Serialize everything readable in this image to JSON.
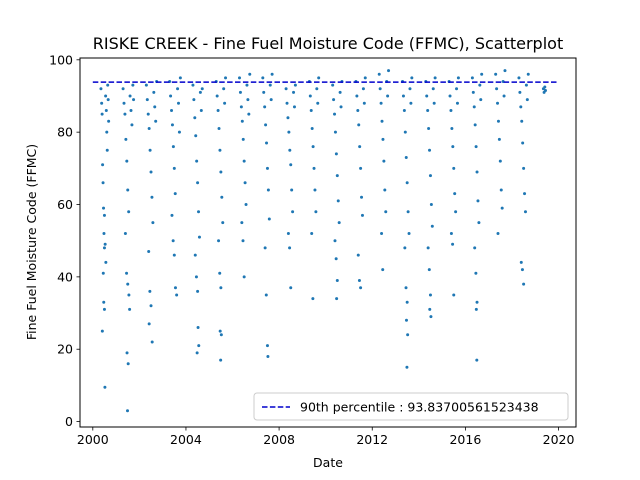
{
  "chart_data": {
    "type": "scatter",
    "title": "RISKE CREEK - Fine Fuel Moisture Code (FFMC), Scatterplot",
    "xlabel": "Date",
    "ylabel": "Fine Fuel Moisture Code (FFMC)",
    "xlim": [
      1999.45,
      2020.75
    ],
    "ylim": [
      -1.5,
      100.5
    ],
    "x_ticks": [
      2000,
      2004,
      2008,
      2012,
      2016,
      2020
    ],
    "x_tick_labels": [
      "2000",
      "2004",
      "2008",
      "2012",
      "2016",
      "2020"
    ],
    "y_ticks": [
      0,
      20,
      40,
      60,
      80,
      100
    ],
    "y_tick_labels": [
      "0",
      "20",
      "40",
      "60",
      "80",
      "100"
    ],
    "grid": false,
    "legend_position": "lower right",
    "series": [
      {
        "type": "scatter",
        "color": "#1f77b4",
        "points": [
          [
            2000.35,
            92
          ],
          [
            2000.38,
            88
          ],
          [
            2000.4,
            85
          ],
          [
            2000.42,
            71
          ],
          [
            2000.44,
            66
          ],
          [
            2000.46,
            59
          ],
          [
            2000.48,
            52
          ],
          [
            2000.5,
            48
          ],
          [
            2000.45,
            41
          ],
          [
            2000.47,
            33
          ],
          [
            2000.5,
            31
          ],
          [
            2000.41,
            25
          ],
          [
            2000.52,
            9.5
          ],
          [
            2000.55,
            90
          ],
          [
            2000.58,
            86
          ],
          [
            2000.6,
            80
          ],
          [
            2000.62,
            75
          ],
          [
            2000.64,
            93
          ],
          [
            2000.66,
            89
          ],
          [
            2000.68,
            83
          ],
          [
            2000.5,
            57
          ],
          [
            2000.53,
            49
          ],
          [
            2000.56,
            44
          ],
          [
            2001.3,
            92
          ],
          [
            2001.34,
            88
          ],
          [
            2001.38,
            85
          ],
          [
            2001.42,
            78
          ],
          [
            2001.46,
            72
          ],
          [
            2001.5,
            64
          ],
          [
            2001.54,
            58
          ],
          [
            2001.4,
            52
          ],
          [
            2001.45,
            41
          ],
          [
            2001.5,
            38
          ],
          [
            2001.55,
            35
          ],
          [
            2001.58,
            31
          ],
          [
            2001.47,
            19
          ],
          [
            2001.52,
            16
          ],
          [
            2001.49,
            3
          ],
          [
            2001.6,
            90
          ],
          [
            2001.64,
            86
          ],
          [
            2001.68,
            82
          ],
          [
            2001.72,
            93
          ],
          [
            2001.75,
            89
          ],
          [
            2002.3,
            93
          ],
          [
            2002.34,
            89
          ],
          [
            2002.38,
            85
          ],
          [
            2002.42,
            81
          ],
          [
            2002.46,
            75
          ],
          [
            2002.5,
            69
          ],
          [
            2002.54,
            62
          ],
          [
            2002.58,
            55
          ],
          [
            2002.4,
            47
          ],
          [
            2002.45,
            36
          ],
          [
            2002.5,
            32
          ],
          [
            2002.42,
            27
          ],
          [
            2002.55,
            22
          ],
          [
            2002.62,
            91
          ],
          [
            2002.66,
            87
          ],
          [
            2002.7,
            83
          ],
          [
            2002.74,
            94
          ],
          [
            2003.3,
            94
          ],
          [
            2003.34,
            90
          ],
          [
            2003.38,
            86
          ],
          [
            2003.42,
            82
          ],
          [
            2003.46,
            76
          ],
          [
            2003.5,
            70
          ],
          [
            2003.54,
            63
          ],
          [
            2003.4,
            57
          ],
          [
            2003.45,
            50
          ],
          [
            2003.5,
            46
          ],
          [
            2003.55,
            37
          ],
          [
            2003.6,
            35
          ],
          [
            2003.64,
            92
          ],
          [
            2003.68,
            88
          ],
          [
            2003.72,
            80
          ],
          [
            2003.76,
            95
          ],
          [
            2004.3,
            93
          ],
          [
            2004.34,
            89
          ],
          [
            2004.38,
            84
          ],
          [
            2004.42,
            79
          ],
          [
            2004.46,
            72
          ],
          [
            2004.5,
            66
          ],
          [
            2004.54,
            58
          ],
          [
            2004.58,
            51
          ],
          [
            2004.4,
            46
          ],
          [
            2004.45,
            40
          ],
          [
            2004.5,
            36
          ],
          [
            2004.52,
            26
          ],
          [
            2004.55,
            21
          ],
          [
            2004.48,
            19
          ],
          [
            2004.62,
            91
          ],
          [
            2004.66,
            86
          ],
          [
            2004.7,
            92
          ],
          [
            2005.3,
            94
          ],
          [
            2005.34,
            90
          ],
          [
            2005.38,
            86
          ],
          [
            2005.42,
            81
          ],
          [
            2005.46,
            75
          ],
          [
            2005.5,
            69
          ],
          [
            2005.54,
            62
          ],
          [
            2005.58,
            55
          ],
          [
            2005.4,
            50
          ],
          [
            2005.45,
            41
          ],
          [
            2005.5,
            37
          ],
          [
            2005.47,
            25
          ],
          [
            2005.52,
            24
          ],
          [
            2005.49,
            17
          ],
          [
            2005.62,
            92
          ],
          [
            2005.66,
            88
          ],
          [
            2005.7,
            95
          ],
          [
            2006.3,
            95
          ],
          [
            2006.34,
            91
          ],
          [
            2006.38,
            87
          ],
          [
            2006.42,
            83
          ],
          [
            2006.46,
            78
          ],
          [
            2006.5,
            72
          ],
          [
            2006.54,
            66
          ],
          [
            2006.58,
            60
          ],
          [
            2006.4,
            55
          ],
          [
            2006.45,
            50
          ],
          [
            2006.5,
            40
          ],
          [
            2006.62,
            93
          ],
          [
            2006.66,
            89
          ],
          [
            2006.7,
            85
          ],
          [
            2006.74,
            96
          ],
          [
            2007.3,
            95
          ],
          [
            2007.34,
            91
          ],
          [
            2007.38,
            87
          ],
          [
            2007.42,
            82
          ],
          [
            2007.46,
            77
          ],
          [
            2007.5,
            70
          ],
          [
            2007.54,
            64
          ],
          [
            2007.58,
            56
          ],
          [
            2007.4,
            48
          ],
          [
            2007.45,
            35
          ],
          [
            2007.5,
            21
          ],
          [
            2007.52,
            18
          ],
          [
            2007.62,
            93
          ],
          [
            2007.66,
            89
          ],
          [
            2007.7,
            96
          ],
          [
            2008.3,
            92
          ],
          [
            2008.34,
            88
          ],
          [
            2008.38,
            84
          ],
          [
            2008.42,
            80
          ],
          [
            2008.46,
            75
          ],
          [
            2008.5,
            71
          ],
          [
            2008.54,
            64
          ],
          [
            2008.58,
            58
          ],
          [
            2008.4,
            52
          ],
          [
            2008.45,
            48
          ],
          [
            2008.5,
            37
          ],
          [
            2008.62,
            91
          ],
          [
            2008.66,
            87
          ],
          [
            2008.7,
            93
          ],
          [
            2009.3,
            94
          ],
          [
            2009.34,
            90
          ],
          [
            2009.38,
            86
          ],
          [
            2009.42,
            81
          ],
          [
            2009.46,
            76
          ],
          [
            2009.5,
            70
          ],
          [
            2009.54,
            64
          ],
          [
            2009.58,
            58
          ],
          [
            2009.4,
            52
          ],
          [
            2009.45,
            34
          ],
          [
            2009.62,
            92
          ],
          [
            2009.66,
            88
          ],
          [
            2009.7,
            95
          ],
          [
            2010.3,
            93
          ],
          [
            2010.34,
            89
          ],
          [
            2010.38,
            85
          ],
          [
            2010.42,
            80
          ],
          [
            2010.46,
            74
          ],
          [
            2010.5,
            68
          ],
          [
            2010.54,
            61
          ],
          [
            2010.58,
            55
          ],
          [
            2010.4,
            50
          ],
          [
            2010.45,
            45
          ],
          [
            2010.5,
            39
          ],
          [
            2010.47,
            34
          ],
          [
            2010.62,
            91
          ],
          [
            2010.66,
            87
          ],
          [
            2010.7,
            94
          ],
          [
            2011.3,
            94
          ],
          [
            2011.34,
            90
          ],
          [
            2011.38,
            86
          ],
          [
            2011.42,
            82
          ],
          [
            2011.46,
            76
          ],
          [
            2011.5,
            70
          ],
          [
            2011.54,
            62
          ],
          [
            2011.58,
            57
          ],
          [
            2011.4,
            46
          ],
          [
            2011.45,
            39
          ],
          [
            2011.5,
            37
          ],
          [
            2011.62,
            92
          ],
          [
            2011.66,
            88
          ],
          [
            2011.7,
            95
          ],
          [
            2012.3,
            96
          ],
          [
            2012.34,
            92
          ],
          [
            2012.38,
            88
          ],
          [
            2012.42,
            83
          ],
          [
            2012.46,
            78
          ],
          [
            2012.5,
            72
          ],
          [
            2012.54,
            64
          ],
          [
            2012.58,
            58
          ],
          [
            2012.4,
            52
          ],
          [
            2012.45,
            42
          ],
          [
            2012.62,
            94
          ],
          [
            2012.66,
            90
          ],
          [
            2012.7,
            97
          ],
          [
            2013.3,
            94
          ],
          [
            2013.34,
            90
          ],
          [
            2013.38,
            86
          ],
          [
            2013.42,
            80
          ],
          [
            2013.46,
            73
          ],
          [
            2013.5,
            66
          ],
          [
            2013.54,
            58
          ],
          [
            2013.58,
            52
          ],
          [
            2013.4,
            48
          ],
          [
            2013.45,
            37
          ],
          [
            2013.5,
            33
          ],
          [
            2013.47,
            28
          ],
          [
            2013.52,
            24
          ],
          [
            2013.49,
            15
          ],
          [
            2013.62,
            92
          ],
          [
            2013.66,
            88
          ],
          [
            2013.7,
            95
          ],
          [
            2014.3,
            94
          ],
          [
            2014.34,
            90
          ],
          [
            2014.38,
            86
          ],
          [
            2014.42,
            81
          ],
          [
            2014.46,
            75
          ],
          [
            2014.5,
            68
          ],
          [
            2014.54,
            60
          ],
          [
            2014.58,
            54
          ],
          [
            2014.4,
            48
          ],
          [
            2014.45,
            42
          ],
          [
            2014.5,
            35
          ],
          [
            2014.47,
            31
          ],
          [
            2014.52,
            29
          ],
          [
            2014.62,
            92
          ],
          [
            2014.66,
            88
          ],
          [
            2014.7,
            95
          ],
          [
            2015.3,
            94
          ],
          [
            2015.34,
            90
          ],
          [
            2015.38,
            86
          ],
          [
            2015.42,
            81
          ],
          [
            2015.46,
            76
          ],
          [
            2015.5,
            70
          ],
          [
            2015.54,
            63
          ],
          [
            2015.58,
            58
          ],
          [
            2015.4,
            52
          ],
          [
            2015.45,
            49
          ],
          [
            2015.5,
            35
          ],
          [
            2015.62,
            92
          ],
          [
            2015.66,
            88
          ],
          [
            2015.7,
            95
          ],
          [
            2016.3,
            95
          ],
          [
            2016.34,
            91
          ],
          [
            2016.38,
            87
          ],
          [
            2016.42,
            82
          ],
          [
            2016.46,
            76
          ],
          [
            2016.5,
            69
          ],
          [
            2016.54,
            61
          ],
          [
            2016.58,
            55
          ],
          [
            2016.4,
            48
          ],
          [
            2016.45,
            41
          ],
          [
            2016.5,
            33
          ],
          [
            2016.47,
            31
          ],
          [
            2016.49,
            17
          ],
          [
            2016.62,
            93
          ],
          [
            2016.66,
            89
          ],
          [
            2016.7,
            96
          ],
          [
            2017.3,
            96
          ],
          [
            2017.34,
            92
          ],
          [
            2017.38,
            88
          ],
          [
            2017.42,
            83
          ],
          [
            2017.46,
            78
          ],
          [
            2017.5,
            72
          ],
          [
            2017.54,
            64
          ],
          [
            2017.58,
            59
          ],
          [
            2017.4,
            52
          ],
          [
            2017.62,
            94
          ],
          [
            2017.66,
            90
          ],
          [
            2017.7,
            97
          ],
          [
            2018.3,
            95
          ],
          [
            2018.34,
            91
          ],
          [
            2018.38,
            87
          ],
          [
            2018.42,
            83
          ],
          [
            2018.46,
            77
          ],
          [
            2018.5,
            70
          ],
          [
            2018.54,
            63
          ],
          [
            2018.58,
            58
          ],
          [
            2018.4,
            44
          ],
          [
            2018.45,
            42
          ],
          [
            2018.5,
            38
          ],
          [
            2018.62,
            93
          ],
          [
            2018.66,
            89
          ],
          [
            2018.7,
            96
          ],
          [
            2019.35,
            92
          ],
          [
            2019.38,
            91
          ],
          [
            2019.41,
            92.5
          ],
          [
            2019.44,
            91.5
          ]
        ]
      },
      {
        "name": "90th percentile : 93.83700561523438",
        "type": "line",
        "style": "dashed",
        "color": "#0000cc",
        "x": [
          2000.0,
          2020.0
        ],
        "values": [
          93.83700561523438,
          93.83700561523438
        ]
      }
    ],
    "legend": [
      {
        "label": "90th percentile : 93.83700561523438",
        "color": "#0000cc",
        "style": "dashed"
      }
    ]
  }
}
